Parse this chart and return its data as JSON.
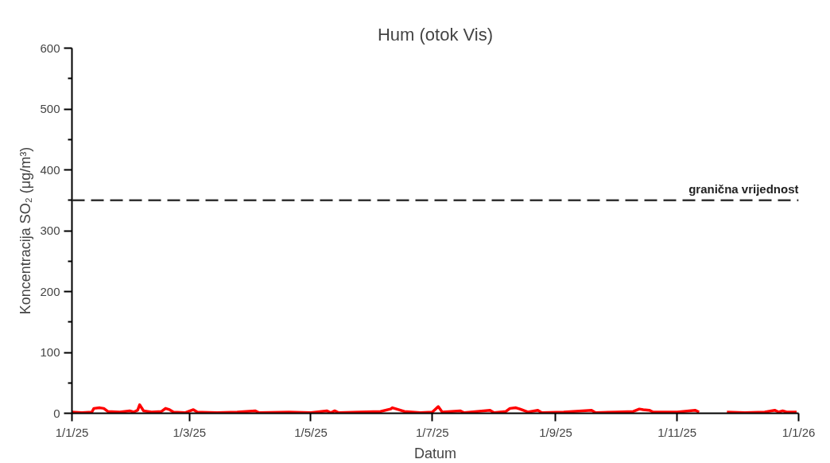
{
  "chart_data": {
    "type": "line",
    "title": "Hum (otok Vis)",
    "xlabel": "Datum",
    "ylabel": "Koncentracija SO₂ (μg/m³)",
    "x": [
      "2025-01-01",
      "2025-01-06",
      "2025-01-11",
      "2025-01-12",
      "2025-01-15",
      "2025-01-17",
      "2025-01-19",
      "2025-01-25",
      "2025-01-30",
      "2025-02-01",
      "2025-02-03",
      "2025-02-04",
      "2025-02-06",
      "2025-02-10",
      "2025-02-15",
      "2025-02-17",
      "2025-02-19",
      "2025-02-21",
      "2025-02-27",
      "2025-03-03",
      "2025-03-05",
      "2025-03-15",
      "2025-03-25",
      "2025-04-03",
      "2025-04-05",
      "2025-04-20",
      "2025-05-01",
      "2025-05-09",
      "2025-05-11",
      "2025-05-13",
      "2025-05-15",
      "2025-05-25",
      "2025-06-05",
      "2025-06-10",
      "2025-06-11",
      "2025-06-14",
      "2025-06-17",
      "2025-06-25",
      "2025-07-01",
      "2025-07-04",
      "2025-07-06",
      "2025-07-15",
      "2025-07-17",
      "2025-07-30",
      "2025-08-01",
      "2025-08-07",
      "2025-08-09",
      "2025-08-12",
      "2025-08-14",
      "2025-08-18",
      "2025-08-23",
      "2025-08-25",
      "2025-09-05",
      "2025-09-19",
      "2025-09-21",
      "2025-10-01",
      "2025-10-10",
      "2025-10-13",
      "2025-10-15",
      "2025-10-18",
      "2025-10-20",
      "2025-11-01",
      "2025-11-10",
      "2025-11-12",
      "2025-11-13",
      "2025-11-26",
      "2025-12-05",
      "2025-12-15",
      "2025-12-20",
      "2025-12-22",
      "2025-12-24",
      "2025-12-26",
      "2025-12-31"
    ],
    "series": [
      {
        "color": "#ff0000",
        "values": [
          2,
          1,
          2,
          8,
          9,
          8,
          3,
          2,
          4,
          2,
          5,
          14,
          4,
          2,
          3,
          8,
          6,
          2,
          1,
          6,
          2,
          1,
          2,
          4,
          1,
          2,
          1,
          4,
          1,
          4,
          1,
          2,
          3,
          7,
          9,
          6,
          3,
          1,
          2,
          11,
          2,
          4,
          1,
          5,
          1,
          3,
          8,
          9,
          7,
          2,
          5,
          1,
          2,
          5,
          1,
          2,
          3,
          7,
          6,
          5,
          2,
          2,
          5,
          2,
          null,
          2,
          1,
          2,
          5,
          2,
          4,
          2,
          2
        ]
      }
    ],
    "xlim": [
      "2025-01-01",
      "2026-01-01"
    ],
    "xticks": [
      {
        "value": "2025-01-01",
        "label": "1/1/25"
      },
      {
        "value": "2025-03-01",
        "label": "1/3/25"
      },
      {
        "value": "2025-05-01",
        "label": "1/5/25"
      },
      {
        "value": "2025-07-01",
        "label": "1/7/25"
      },
      {
        "value": "2025-09-01",
        "label": "1/9/25"
      },
      {
        "value": "2025-11-01",
        "label": "1/11/25"
      },
      {
        "value": "2026-01-01",
        "label": "1/1/26"
      }
    ],
    "ylim": [
      0,
      600
    ],
    "yticks": [
      0,
      {
        "value": 50,
        "label": null
      },
      100,
      {
        "value": 150,
        "label": null
      },
      200,
      {
        "value": 250,
        "label": null
      },
      300,
      {
        "value": 350,
        "label": null
      },
      400,
      {
        "value": 450,
        "label": null
      },
      500,
      {
        "value": 550,
        "label": null
      },
      600
    ],
    "ref_lines": [
      {
        "axis": "y",
        "value": 350,
        "label": "granična vrijednost",
        "color": "#333333",
        "line_style": "dashed"
      }
    ],
    "grid": false,
    "marker": "none",
    "line_style": "solid"
  }
}
